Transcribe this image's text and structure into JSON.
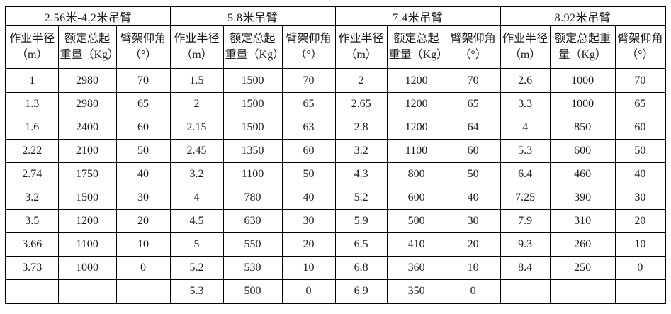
{
  "table": {
    "groups": [
      {
        "title": "2.56米-4.2米吊臂",
        "columns": [
          "作业半径\n（m）",
          "额定总起\n重量（Kg）",
          "臂架仰角\n（°）"
        ],
        "rows": [
          [
            "1",
            "2980",
            "70"
          ],
          [
            "1.3",
            "2980",
            "65"
          ],
          [
            "1.6",
            "2400",
            "60"
          ],
          [
            "2.22",
            "2100",
            "50"
          ],
          [
            "2.74",
            "1750",
            "40"
          ],
          [
            "3.2",
            "1500",
            "30"
          ],
          [
            "3.5",
            "1200",
            "20"
          ],
          [
            "3.66",
            "1100",
            "10"
          ],
          [
            "3.73",
            "1000",
            "0"
          ],
          [
            "",
            "",
            ""
          ]
        ]
      },
      {
        "title": "5.8米吊臂",
        "columns": [
          "作业半径\n（m）",
          "额定总起\n重量（Kg）",
          "臂架仰角\n（°）"
        ],
        "rows": [
          [
            "1.5",
            "1500",
            "70"
          ],
          [
            "2",
            "1500",
            "65"
          ],
          [
            "2.15",
            "1500",
            "63"
          ],
          [
            "2.45",
            "1350",
            "60"
          ],
          [
            "3.2",
            "1100",
            "50"
          ],
          [
            "4",
            "780",
            "40"
          ],
          [
            "4.5",
            "630",
            "30"
          ],
          [
            "5",
            "550",
            "20"
          ],
          [
            "5.2",
            "530",
            "10"
          ],
          [
            "5.3",
            "500",
            "0"
          ]
        ]
      },
      {
        "title": "7.4米吊臂",
        "columns": [
          "作业半径\n（m）",
          "额定总起\n重量（Kg）",
          "臂架仰角\n（°）"
        ],
        "rows": [
          [
            "2",
            "1200",
            "70"
          ],
          [
            "2.65",
            "1200",
            "65"
          ],
          [
            "2.8",
            "1200",
            "64"
          ],
          [
            "3.2",
            "1100",
            "60"
          ],
          [
            "4.3",
            "800",
            "50"
          ],
          [
            "5.2",
            "600",
            "40"
          ],
          [
            "5.9",
            "500",
            "30"
          ],
          [
            "6.5",
            "410",
            "20"
          ],
          [
            "6.8",
            "360",
            "10"
          ],
          [
            "6.9",
            "350",
            "0"
          ]
        ]
      },
      {
        "title": "8.92米吊臂",
        "columns": [
          "作业半径\n（m）",
          "额定总起重\n量（Kg）",
          "臂架仰角\n（°）"
        ],
        "rows": [
          [
            "2.6",
            "1000",
            "70"
          ],
          [
            "3.3",
            "1000",
            "65"
          ],
          [
            "4",
            "850",
            "60"
          ],
          [
            "5.3",
            "600",
            "50"
          ],
          [
            "6.4",
            "460",
            "40"
          ],
          [
            "7.25",
            "390",
            "30"
          ],
          [
            "7.9",
            "310",
            "20"
          ],
          [
            "9.3",
            "260",
            "10"
          ],
          [
            "8.4",
            "250",
            "0"
          ],
          [
            "",
            "",
            ""
          ]
        ]
      }
    ]
  }
}
